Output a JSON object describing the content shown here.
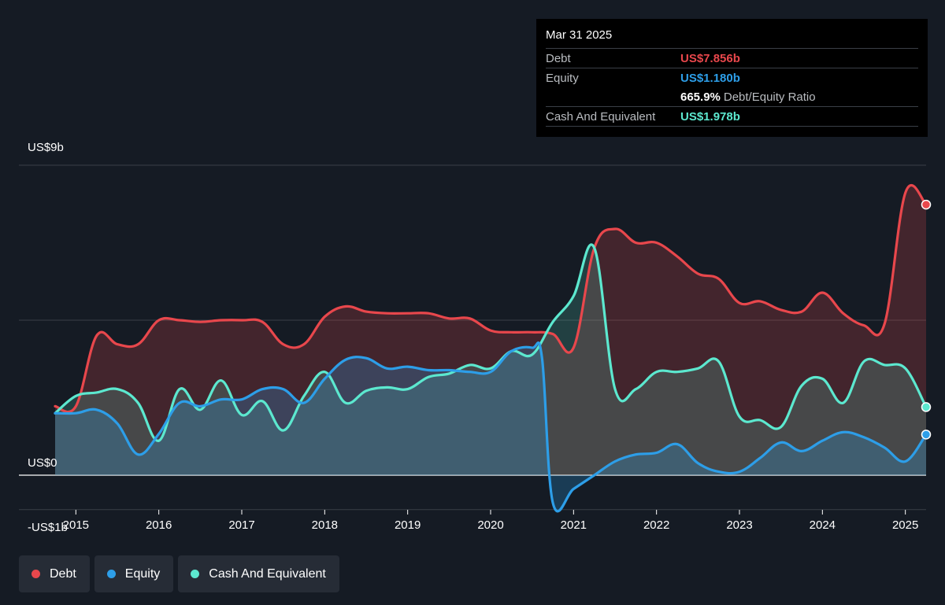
{
  "tooltip": {
    "date": "Mar 31 2025",
    "debt_label": "Debt",
    "debt_value": "US$7.856b",
    "equity_label": "Equity",
    "equity_value": "US$1.180b",
    "ratio_value": "665.9%",
    "ratio_label": "Debt/Equity Ratio",
    "cash_label": "Cash And Equivalent",
    "cash_value": "US$1.978b"
  },
  "legend": [
    {
      "label": "Debt",
      "color": "#e8474c"
    },
    {
      "label": "Equity",
      "color": "#2d9ee8"
    },
    {
      "label": "Cash And Equivalent",
      "color": "#5ce8cf"
    }
  ],
  "chart_data": {
    "type": "line",
    "title": "",
    "xlabel": "",
    "ylabel": "",
    "xlim": [
      2014.75,
      2025.25
    ],
    "ylim": [
      -1,
      9
    ],
    "y_tick_labels": [
      {
        "value": 9,
        "label": "US$9b"
      },
      {
        "value": 0,
        "label": "US$0"
      },
      {
        "value": -1,
        "label": "-US$1b"
      }
    ],
    "gridlines": [
      9,
      4.5,
      0,
      -1
    ],
    "x_ticks": [
      2015,
      2016,
      2017,
      2018,
      2019,
      2020,
      2021,
      2022,
      2023,
      2024,
      2025
    ],
    "x_tick_labels": [
      "2015",
      "2016",
      "2017",
      "2018",
      "2019",
      "2020",
      "2021",
      "2022",
      "2023",
      "2024",
      "2025"
    ],
    "legend_position": "bottom-left",
    "series": [
      {
        "name": "Debt",
        "color": "#e8474c",
        "x": [
          2014.75,
          2015.0,
          2015.25,
          2015.5,
          2015.75,
          2016.0,
          2016.25,
          2016.5,
          2016.75,
          2017.0,
          2017.25,
          2017.5,
          2017.75,
          2018.0,
          2018.25,
          2018.5,
          2018.75,
          2019.0,
          2019.25,
          2019.5,
          2019.75,
          2020.0,
          2020.25,
          2020.5,
          2020.75,
          2021.0,
          2021.25,
          2021.5,
          2021.75,
          2022.0,
          2022.25,
          2022.5,
          2022.75,
          2023.0,
          2023.25,
          2023.5,
          2023.75,
          2024.0,
          2024.25,
          2024.5,
          2024.75,
          2025.0,
          2025.25
        ],
        "values": [
          2.0,
          2.0,
          4.05,
          3.8,
          3.8,
          4.5,
          4.5,
          4.45,
          4.5,
          4.5,
          4.45,
          3.8,
          3.8,
          4.6,
          4.9,
          4.75,
          4.7,
          4.7,
          4.7,
          4.55,
          4.55,
          4.2,
          4.15,
          4.15,
          4.1,
          3.7,
          6.6,
          7.15,
          6.75,
          6.75,
          6.35,
          5.85,
          5.7,
          5.0,
          5.05,
          4.8,
          4.75,
          5.3,
          4.7,
          4.35,
          4.4,
          8.2,
          7.856
        ]
      },
      {
        "name": "Equity",
        "color": "#2d9ee8",
        "x": [
          2014.75,
          2015.0,
          2015.25,
          2015.5,
          2015.75,
          2016.0,
          2016.25,
          2016.5,
          2016.75,
          2017.0,
          2017.25,
          2017.5,
          2017.75,
          2018.0,
          2018.25,
          2018.5,
          2018.75,
          2019.0,
          2019.25,
          2019.5,
          2019.75,
          2020.0,
          2020.25,
          2020.5,
          2020.62,
          2020.75,
          2021.0,
          2021.25,
          2021.5,
          2021.75,
          2022.0,
          2022.25,
          2022.5,
          2022.75,
          2023.0,
          2023.25,
          2023.5,
          2023.75,
          2024.0,
          2024.25,
          2024.5,
          2024.75,
          2025.0,
          2025.25
        ],
        "values": [
          1.8,
          1.8,
          1.9,
          1.5,
          0.6,
          1.2,
          2.1,
          2.0,
          2.2,
          2.2,
          2.5,
          2.5,
          2.1,
          2.8,
          3.35,
          3.4,
          3.1,
          3.15,
          3.05,
          3.05,
          3.0,
          3.0,
          3.6,
          3.7,
          3.4,
          -0.8,
          -0.4,
          0.0,
          0.4,
          0.6,
          0.65,
          0.9,
          0.35,
          0.1,
          0.1,
          0.5,
          0.95,
          0.7,
          1.0,
          1.25,
          1.1,
          0.8,
          0.4,
          1.18
        ]
      },
      {
        "name": "Cash And Equivalent",
        "color": "#5ce8cf",
        "x": [
          2014.75,
          2015.0,
          2015.25,
          2015.5,
          2015.75,
          2016.0,
          2016.25,
          2016.5,
          2016.75,
          2017.0,
          2017.25,
          2017.5,
          2017.75,
          2018.0,
          2018.25,
          2018.5,
          2018.75,
          2019.0,
          2019.25,
          2019.5,
          2019.75,
          2020.0,
          2020.25,
          2020.5,
          2020.75,
          2021.0,
          2021.25,
          2021.5,
          2021.75,
          2022.0,
          2022.25,
          2022.5,
          2022.75,
          2023.0,
          2023.25,
          2023.5,
          2023.75,
          2024.0,
          2024.25,
          2024.5,
          2024.75,
          2025.0,
          2025.25
        ],
        "values": [
          1.8,
          2.3,
          2.4,
          2.5,
          2.1,
          1.0,
          2.5,
          1.9,
          2.75,
          1.75,
          2.15,
          1.3,
          2.3,
          3.0,
          2.1,
          2.45,
          2.55,
          2.5,
          2.85,
          2.95,
          3.2,
          3.1,
          3.6,
          3.5,
          4.45,
          5.2,
          6.6,
          2.5,
          2.5,
          3.0,
          3.0,
          3.1,
          3.3,
          1.7,
          1.6,
          1.4,
          2.6,
          2.8,
          2.1,
          3.3,
          3.2,
          3.1,
          1.978
        ]
      }
    ]
  }
}
